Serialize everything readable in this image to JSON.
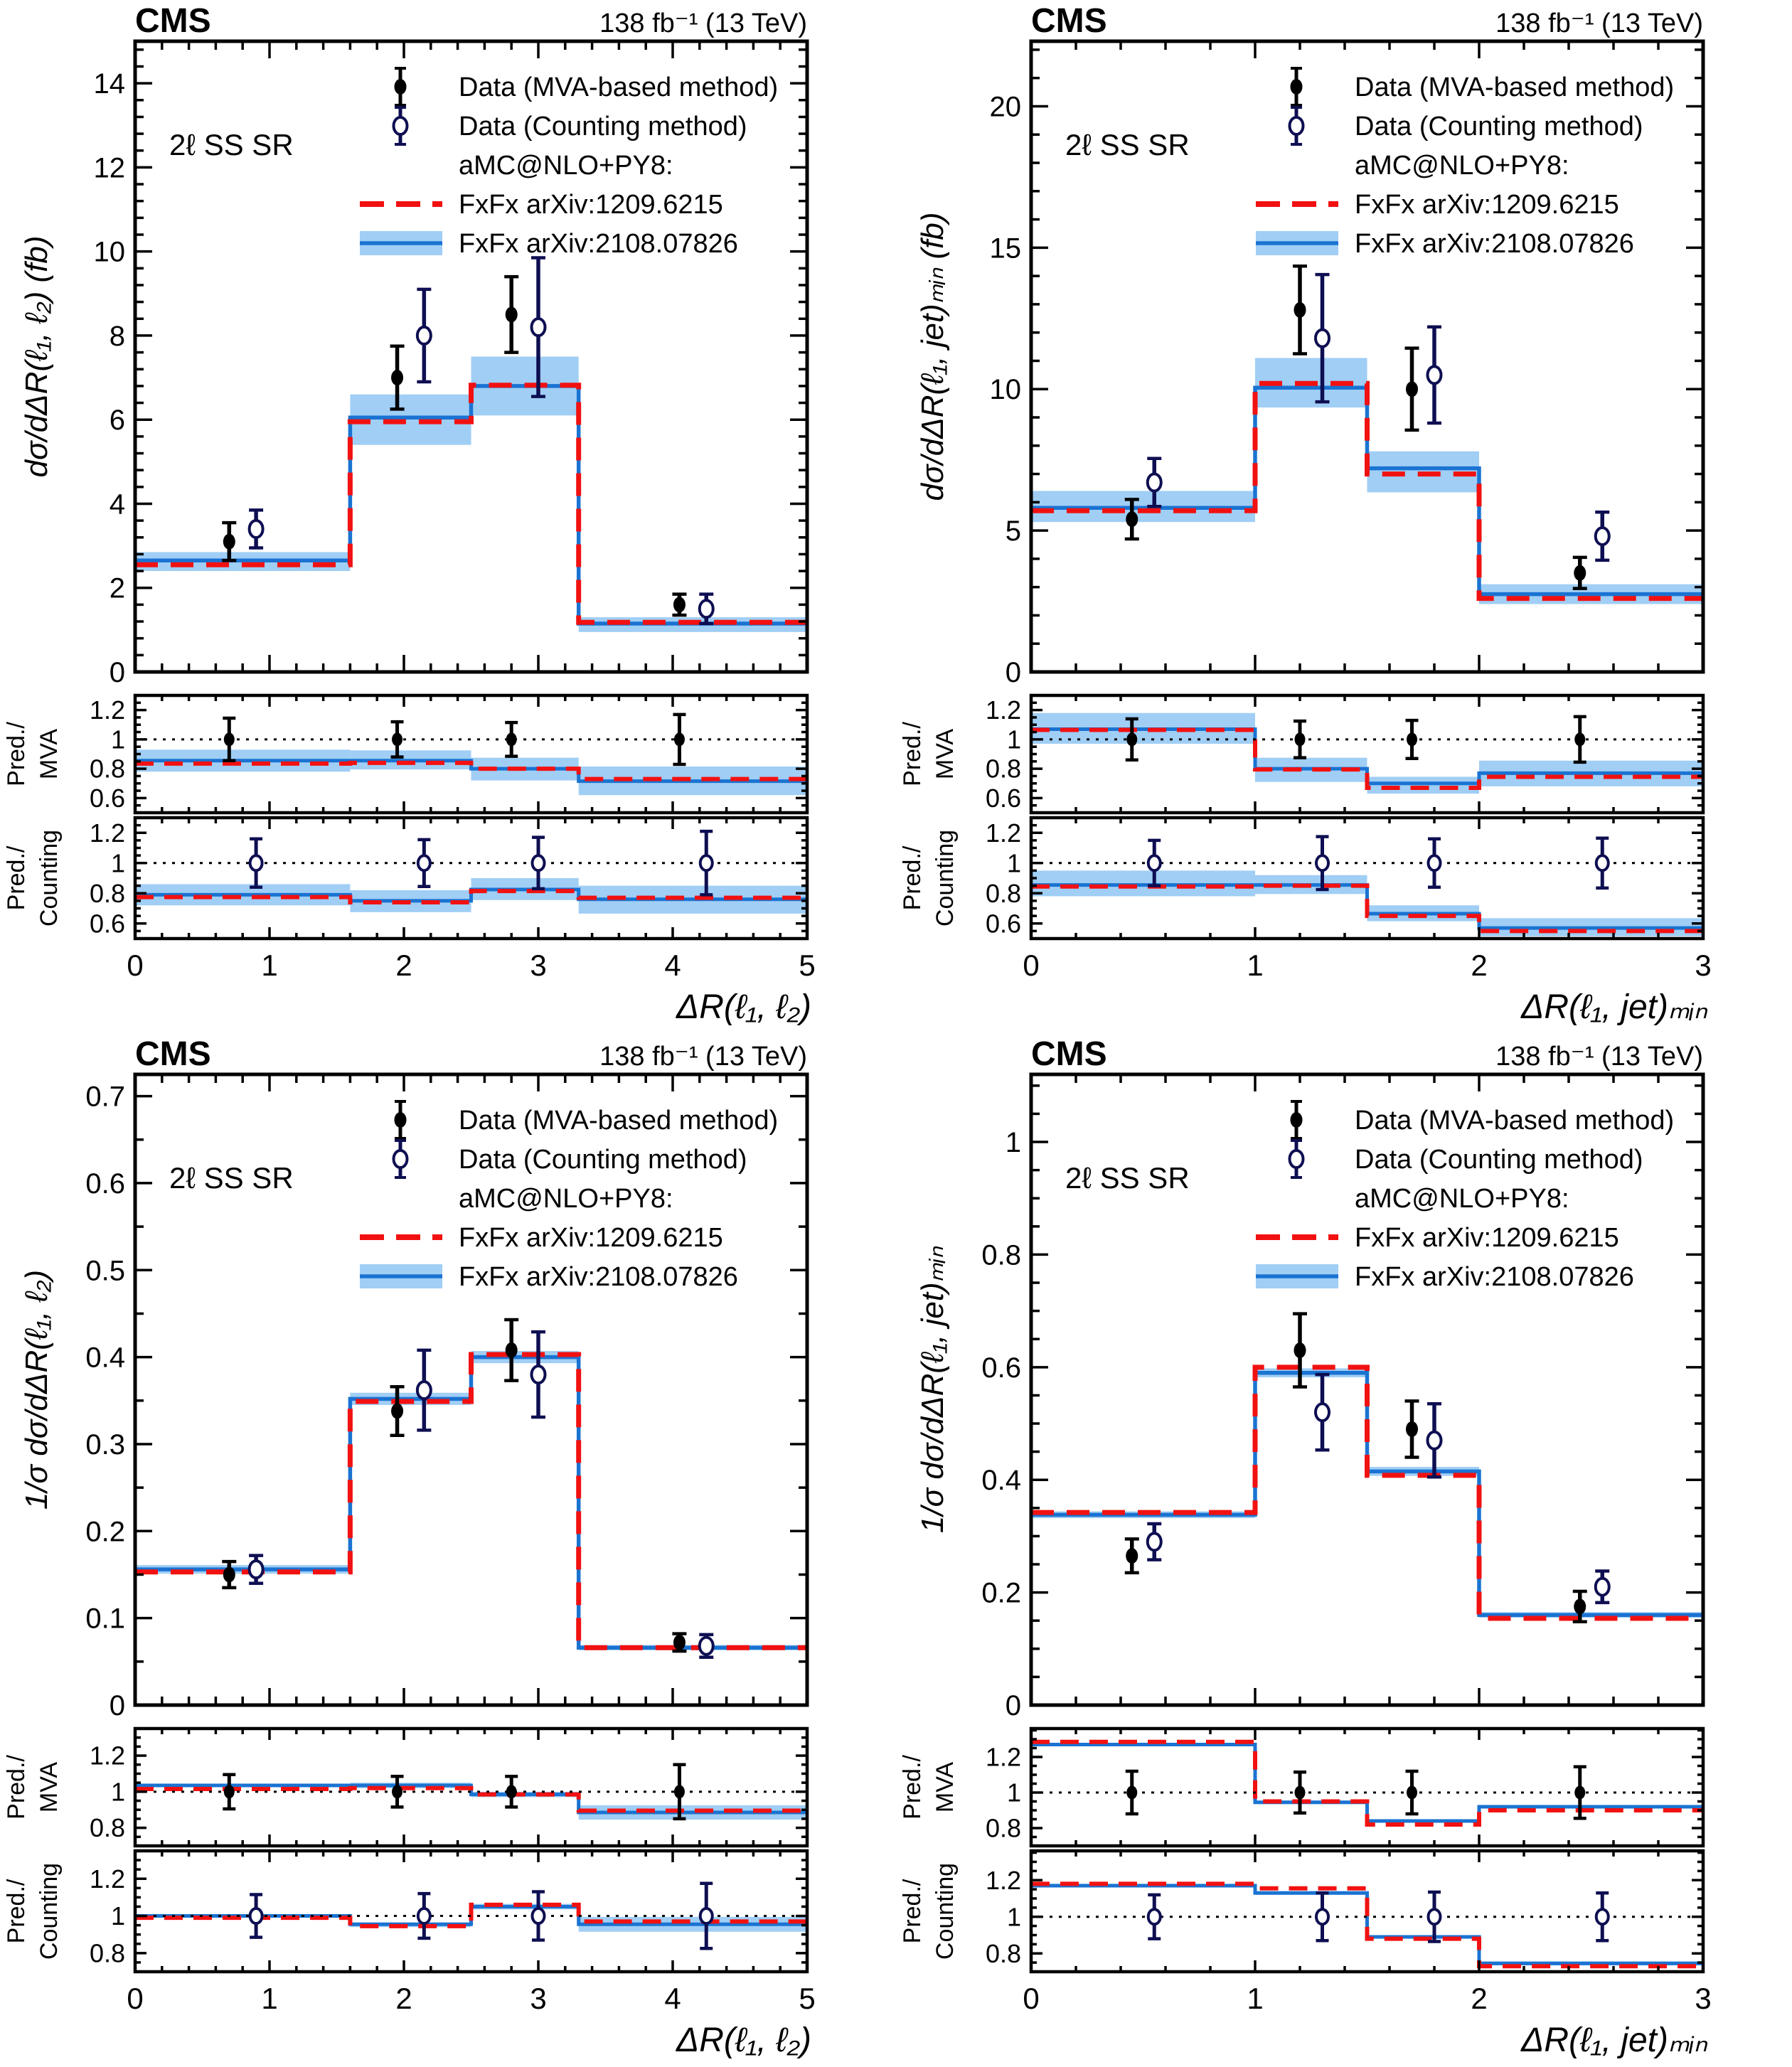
{
  "common": {
    "cms": "CMS",
    "lumi": "138 fb⁻¹ (13 TeV)",
    "region": "2ℓ SS SR",
    "legend": {
      "mva": "Data (MVA-based method)",
      "counting": "Data (Counting method)",
      "generator": "aMC@NLO+PY8:",
      "fxfx_old": "FxFx arXiv:1209.6215",
      "fxfx_new": "FxFx arXiv:2108.07826"
    },
    "ratio_labels": {
      "mva": [
        "Pred./",
        "MVA"
      ],
      "counting": [
        "Pred./",
        "Counting"
      ]
    },
    "colors": {
      "blue_line": "#1a73d2",
      "band": "#a0cef5",
      "red_line": "#f21111",
      "navy": "#0e0e52",
      "black": "#000000"
    }
  },
  "chart_data": [
    {
      "id": "dsigma-dDRl1l2",
      "type": "histogram-with-ratio",
      "xlabel": "ΔR(ℓ₁, ℓ₂)",
      "ylabel": "dσ/dΔR(ℓ₁, ℓ₂)  (fb)",
      "xlim": [
        0,
        5
      ],
      "xticks": {
        "values": [
          0,
          1,
          2,
          3,
          4,
          5
        ],
        "labels": [
          "0",
          "1",
          "2",
          "3",
          "4",
          "5"
        ]
      },
      "x_minor_div": 5,
      "ylim": [
        0,
        15.0
      ],
      "yticks": {
        "values": [
          0,
          2,
          4,
          6,
          8,
          10,
          12,
          14
        ],
        "labels": [
          "0",
          "2",
          "4",
          "6",
          "8",
          "10",
          "12",
          "14"
        ]
      },
      "y_minor_div": 5,
      "bin_edges": [
        0,
        1.6,
        2.5,
        3.3,
        5
      ],
      "series": {
        "fxfx_2108": {
          "values": [
            2.65,
            6.05,
            6.8,
            1.15
          ],
          "band_lo": [
            2.4,
            5.4,
            6.1,
            0.95
          ],
          "band_hi": [
            2.85,
            6.6,
            7.5,
            1.3
          ]
        },
        "fxfx_1209": {
          "values": [
            2.55,
            5.95,
            6.82,
            1.18
          ]
        }
      },
      "data_mva": {
        "x": [
          0.7,
          1.95,
          2.8,
          4.05
        ],
        "y": [
          3.1,
          7.0,
          8.5,
          1.6
        ],
        "err": [
          0.45,
          0.75,
          0.9,
          0.25
        ]
      },
      "data_counting": {
        "x": [
          0.9,
          2.15,
          3.0,
          4.25
        ],
        "y": [
          3.4,
          8.0,
          8.2,
          1.5
        ],
        "err": [
          0.45,
          1.1,
          1.65,
          0.35
        ]
      },
      "ratio_mva": {
        "ylim": [
          0.5,
          1.3
        ],
        "yticks": {
          "values": [
            0.6,
            0.8,
            1.0,
            1.2
          ],
          "labels": [
            "0.6",
            "0.8",
            "1",
            "1.2"
          ]
        },
        "y_minor_div": 4,
        "line_2108": [
          0.855,
          0.855,
          0.8,
          0.715
        ],
        "line_1209": [
          0.835,
          0.84,
          0.8,
          0.73
        ],
        "band_lo": [
          0.78,
          0.795,
          0.72,
          0.62
        ],
        "band_hi": [
          0.93,
          0.925,
          0.875,
          0.815
        ],
        "point_err": [
          0.145,
          0.12,
          0.115,
          0.17
        ]
      },
      "ratio_counting": {
        "ylim": [
          0.5,
          1.3
        ],
        "yticks": {
          "values": [
            0.6,
            0.8,
            1.0,
            1.2
          ],
          "labels": [
            "0.6",
            "0.8",
            "1",
            "1.2"
          ]
        },
        "y_minor_div": 4,
        "line_2108": [
          0.79,
          0.75,
          0.825,
          0.76
        ],
        "line_1209": [
          0.775,
          0.74,
          0.815,
          0.77
        ],
        "band_lo": [
          0.72,
          0.675,
          0.755,
          0.665
        ],
        "band_hi": [
          0.86,
          0.82,
          0.9,
          0.85
        ],
        "point_err": [
          0.16,
          0.155,
          0.17,
          0.21
        ]
      }
    },
    {
      "id": "dsigma-dDRl1jetmin",
      "type": "histogram-with-ratio",
      "xlabel": "ΔR(ℓ₁, jet)ₘᵢₙ",
      "ylabel": "dσ/dΔR(ℓ₁, jet)ₘᵢₙ  (fb)",
      "xlim": [
        0,
        3
      ],
      "xticks": {
        "values": [
          0,
          1,
          2,
          3
        ],
        "labels": [
          "0",
          "1",
          "2",
          "3"
        ]
      },
      "x_minor_div": 5,
      "ylim": [
        0,
        22.3
      ],
      "yticks": {
        "values": [
          0,
          5,
          10,
          15,
          20
        ],
        "labels": [
          "0",
          "5",
          "10",
          "15",
          "20"
        ]
      },
      "y_minor_div": 5,
      "bin_edges": [
        0,
        1,
        1.5,
        2,
        3
      ],
      "series": {
        "fxfx_2108": {
          "values": [
            5.8,
            10.05,
            7.2,
            2.75
          ],
          "band_lo": [
            5.3,
            9.35,
            6.35,
            2.4
          ],
          "band_hi": [
            6.4,
            11.1,
            7.8,
            3.1
          ]
        },
        "fxfx_1209": {
          "values": [
            5.7,
            10.2,
            7.0,
            2.6
          ]
        }
      },
      "data_mva": {
        "x": [
          0.45,
          1.2,
          1.7,
          2.45
        ],
        "y": [
          5.4,
          12.8,
          10.0,
          3.5
        ],
        "err": [
          0.7,
          1.55,
          1.45,
          0.55
        ]
      },
      "data_counting": {
        "x": [
          0.55,
          1.3,
          1.8,
          2.55
        ],
        "y": [
          6.7,
          11.8,
          10.5,
          4.8
        ],
        "err": [
          0.85,
          2.25,
          1.7,
          0.85
        ]
      },
      "ratio_mva": {
        "ylim": [
          0.5,
          1.3
        ],
        "yticks": {
          "values": [
            0.6,
            0.8,
            1.0,
            1.2
          ],
          "labels": [
            "0.6",
            "0.8",
            "1",
            "1.2"
          ]
        },
        "y_minor_div": 4,
        "line_2108": [
          1.07,
          0.8,
          0.7,
          0.77
        ],
        "line_1209": [
          1.065,
          0.795,
          0.67,
          0.745
        ],
        "band_lo": [
          0.97,
          0.71,
          0.63,
          0.68
        ],
        "band_hi": [
          1.18,
          0.875,
          0.745,
          0.855
        ],
        "point_err": [
          0.14,
          0.125,
          0.13,
          0.155
        ]
      },
      "ratio_counting": {
        "ylim": [
          0.5,
          1.3
        ],
        "yticks": {
          "values": [
            0.6,
            0.8,
            1.0,
            1.2
          ],
          "labels": [
            "0.6",
            "0.8",
            "1",
            "1.2"
          ]
        },
        "y_minor_div": 4,
        "line_2108": [
          0.855,
          0.855,
          0.665,
          0.57
        ],
        "line_1209": [
          0.845,
          0.85,
          0.65,
          0.55
        ],
        "band_lo": [
          0.78,
          0.795,
          0.615,
          0.515
        ],
        "band_hi": [
          0.95,
          0.92,
          0.72,
          0.635
        ],
        "point_err": [
          0.15,
          0.175,
          0.16,
          0.165
        ]
      }
    },
    {
      "id": "norm-dDRl1l2",
      "type": "histogram-with-ratio",
      "xlabel": "ΔR(ℓ₁, ℓ₂)",
      "ylabel": "1/σ dσ/dΔR(ℓ₁, ℓ₂)",
      "xlim": [
        0,
        5
      ],
      "xticks": {
        "values": [
          0,
          1,
          2,
          3,
          4,
          5
        ],
        "labels": [
          "0",
          "1",
          "2",
          "3",
          "4",
          "5"
        ]
      },
      "x_minor_div": 5,
      "ylim": [
        0,
        0.725
      ],
      "yticks": {
        "values": [
          0,
          0.1,
          0.2,
          0.3,
          0.4,
          0.5,
          0.6,
          0.7
        ],
        "labels": [
          "0",
          "0.1",
          "0.2",
          "0.3",
          "0.4",
          "0.5",
          "0.6",
          "0.7"
        ]
      },
      "y_minor_div": 2,
      "bin_edges": [
        0,
        1.6,
        2.5,
        3.3,
        5
      ],
      "series": {
        "fxfx_2108": {
          "values": [
            0.156,
            0.352,
            0.4,
            0.066
          ],
          "band_lo": [
            0.151,
            0.345,
            0.393,
            0.063
          ],
          "band_hi": [
            0.161,
            0.359,
            0.407,
            0.069
          ]
        },
        "fxfx_1209": {
          "values": [
            0.153,
            0.349,
            0.403,
            0.066
          ]
        }
      },
      "data_mva": {
        "x": [
          0.7,
          1.95,
          2.8,
          4.05
        ],
        "y": [
          0.15,
          0.338,
          0.408,
          0.072
        ],
        "err": [
          0.015,
          0.028,
          0.035,
          0.01
        ]
      },
      "data_counting": {
        "x": [
          0.9,
          2.15,
          3.0,
          4.25
        ],
        "y": [
          0.156,
          0.362,
          0.38,
          0.068
        ],
        "err": [
          0.016,
          0.046,
          0.049,
          0.013
        ]
      },
      "ratio_mva": {
        "ylim": [
          0.7,
          1.35
        ],
        "yticks": {
          "values": [
            0.8,
            1.0,
            1.2
          ],
          "labels": [
            "0.8",
            "1",
            "1.2"
          ]
        },
        "y_minor_div": 4,
        "line_2108": [
          1.035,
          1.035,
          0.985,
          0.885
        ],
        "line_1209": [
          1.015,
          1.02,
          0.985,
          0.895
        ],
        "band_lo": [
          1.025,
          1.02,
          0.97,
          0.845
        ],
        "band_hi": [
          1.045,
          1.05,
          1.0,
          0.925
        ],
        "point_err": [
          0.095,
          0.085,
          0.085,
          0.15
        ]
      },
      "ratio_counting": {
        "ylim": [
          0.7,
          1.35
        ],
        "yticks": {
          "values": [
            0.8,
            1.0,
            1.2
          ],
          "labels": [
            "0.8",
            "1",
            "1.2"
          ]
        },
        "y_minor_div": 4,
        "line_2108": [
          1.0,
          0.955,
          1.05,
          0.955
        ],
        "line_1209": [
          0.99,
          0.945,
          1.06,
          0.97
        ],
        "band_lo": [
          0.99,
          0.94,
          1.035,
          0.915
        ],
        "band_hi": [
          1.01,
          0.965,
          1.065,
          0.995
        ],
        "point_err": [
          0.115,
          0.12,
          0.13,
          0.175
        ]
      }
    },
    {
      "id": "norm-dDRl1jetmin",
      "type": "histogram-with-ratio",
      "xlabel": "ΔR(ℓ₁, jet)ₘᵢₙ",
      "ylabel": "1/σ dσ/dΔR(ℓ₁, jet)ₘᵢₙ",
      "xlim": [
        0,
        3
      ],
      "xticks": {
        "values": [
          0,
          1,
          2,
          3
        ],
        "labels": [
          "0",
          "1",
          "2",
          "3"
        ]
      },
      "x_minor_div": 5,
      "ylim": [
        0,
        1.12
      ],
      "yticks": {
        "values": [
          0,
          0.2,
          0.4,
          0.6,
          0.8,
          1.0
        ],
        "labels": [
          "0",
          "0.2",
          "0.4",
          "0.6",
          "0.8",
          "1"
        ]
      },
      "y_minor_div": 4,
      "bin_edges": [
        0,
        1,
        1.5,
        2,
        3
      ],
      "series": {
        "fxfx_2108": {
          "values": [
            0.338,
            0.59,
            0.415,
            0.16
          ],
          "band_lo": [
            0.332,
            0.582,
            0.407,
            0.155
          ],
          "band_hi": [
            0.344,
            0.598,
            0.423,
            0.165
          ]
        },
        "fxfx_1209": {
          "values": [
            0.342,
            0.6,
            0.408,
            0.154
          ]
        }
      },
      "data_mva": {
        "x": [
          0.45,
          1.2,
          1.7,
          2.45
        ],
        "y": [
          0.265,
          0.63,
          0.49,
          0.175
        ],
        "err": [
          0.03,
          0.065,
          0.05,
          0.027
        ]
      },
      "data_counting": {
        "x": [
          0.55,
          1.3,
          1.8,
          2.55
        ],
        "y": [
          0.29,
          0.52,
          0.47,
          0.21
        ],
        "err": [
          0.032,
          0.067,
          0.065,
          0.028
        ]
      },
      "ratio_mva": {
        "ylim": [
          0.7,
          1.36
        ],
        "yticks": {
          "values": [
            0.8,
            1.0,
            1.2
          ],
          "labels": [
            "0.8",
            "1",
            "1.2"
          ]
        },
        "y_minor_div": 4,
        "line_2108": [
          1.27,
          0.945,
          0.84,
          0.92
        ],
        "line_1209": [
          1.285,
          0.95,
          0.82,
          0.9
        ],
        "band_lo": [
          1.26,
          0.935,
          0.832,
          0.91
        ],
        "band_hi": [
          1.28,
          0.955,
          0.85,
          0.93
        ],
        "point_err": [
          0.12,
          0.115,
          0.12,
          0.145
        ]
      },
      "ratio_counting": {
        "ylim": [
          0.7,
          1.36
        ],
        "yticks": {
          "values": [
            0.8,
            1.0,
            1.2
          ],
          "labels": [
            "0.8",
            "1",
            "1.2"
          ]
        },
        "y_minor_div": 4,
        "line_2108": [
          1.17,
          1.13,
          0.89,
          0.745
        ],
        "line_1209": [
          1.18,
          1.155,
          0.88,
          0.73
        ],
        "band_lo": [
          1.16,
          1.12,
          0.88,
          0.735
        ],
        "band_hi": [
          1.18,
          1.14,
          0.9,
          0.757
        ],
        "point_err": [
          0.12,
          0.13,
          0.135,
          0.13
        ]
      }
    }
  ]
}
